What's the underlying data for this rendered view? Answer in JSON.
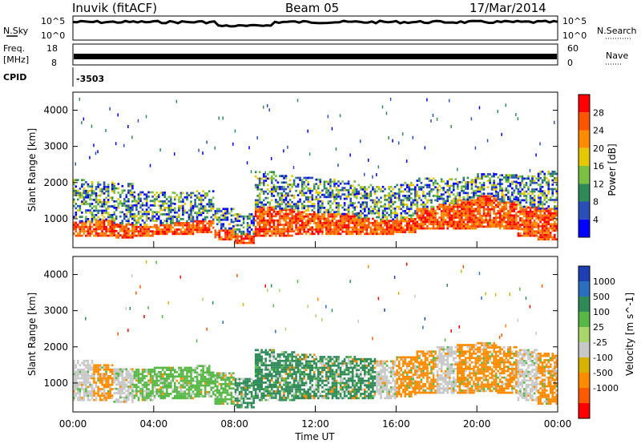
{
  "header": {
    "station": "Inuvik (fitACF)",
    "beam": "Beam 05",
    "date": "17/Mar/2014"
  },
  "status_panels": {
    "nsky_label": "N.Sky",
    "nsky_ticks": [
      "10^5",
      "10^0"
    ],
    "nsearch_label": "N.Search",
    "freq_label": "Freq.",
    "freq_unit": "[MHz]",
    "freq_ticks": [
      "18",
      "8"
    ],
    "nave_label": "Nave",
    "nave_ticks": [
      "60",
      "0"
    ],
    "cpid_label": "CPID",
    "cpid_value": "-3503"
  },
  "chart_data": [
    {
      "type": "heatmap",
      "title": "",
      "xlabel": "",
      "ylabel": "Slant Range [km]",
      "colorbar_label": "Power [dB]",
      "colorbar_ticks": [
        "4",
        "8",
        "12",
        "16",
        "20",
        "24",
        "28"
      ],
      "colorbar_colors": [
        "#0000ff",
        "#2a4fb8",
        "#2e8b57",
        "#7ac043",
        "#e6c800",
        "#ff8c00",
        "#ff5500",
        "#ff0000"
      ],
      "x_tick_labels": [
        "00:00",
        "04:00",
        "08:00",
        "12:00",
        "16:00",
        "20:00",
        "00:00"
      ],
      "xlim_hours": [
        0,
        24
      ],
      "y_ticks": [
        1000,
        2000,
        3000,
        4000
      ],
      "ylim": [
        200,
        4500
      ],
      "x_hours": [
        0,
        1,
        2,
        3,
        4,
        5,
        6,
        7,
        8,
        9,
        10,
        11,
        12,
        13,
        14,
        15,
        16,
        17,
        18,
        19,
        20,
        21,
        22,
        23
      ],
      "strong_echo_range_km": [
        [
          500,
          900
        ],
        [
          500,
          950
        ],
        [
          450,
          850
        ],
        [
          500,
          800
        ],
        [
          550,
          850
        ],
        [
          550,
          900
        ],
        [
          600,
          950
        ],
        [
          400,
          700
        ],
        [
          300,
          550
        ],
        [
          500,
          1300
        ],
        [
          500,
          1250
        ],
        [
          550,
          1200
        ],
        [
          550,
          1150
        ],
        [
          550,
          1100
        ],
        [
          550,
          1000
        ],
        [
          550,
          950
        ],
        [
          600,
          1000
        ],
        [
          700,
          1300
        ],
        [
          700,
          1400
        ],
        [
          700,
          1500
        ],
        [
          750,
          1600
        ],
        [
          700,
          1450
        ],
        [
          500,
          1300
        ],
        [
          400,
          1250
        ]
      ],
      "weak_echo_range_km": [
        [
          1000,
          2100
        ],
        [
          900,
          2000
        ],
        [
          850,
          1950
        ],
        [
          850,
          1750
        ],
        [
          850,
          1700
        ],
        [
          900,
          1700
        ],
        [
          950,
          1750
        ],
        [
          600,
          1300
        ],
        [
          550,
          1100
        ],
        [
          1200,
          2300
        ],
        [
          1200,
          2200
        ],
        [
          1150,
          2150
        ],
        [
          1100,
          2100
        ],
        [
          1100,
          2050
        ],
        [
          1000,
          1950
        ],
        [
          950,
          1900
        ],
        [
          1000,
          2000
        ],
        [
          1300,
          2100
        ],
        [
          1400,
          2100
        ],
        [
          1500,
          2150
        ],
        [
          1550,
          2250
        ],
        [
          1450,
          2200
        ],
        [
          1300,
          2200
        ],
        [
          1200,
          2300
        ]
      ]
    },
    {
      "type": "heatmap",
      "title": "",
      "xlabel": "Time UT",
      "ylabel": "Slant Range [km]",
      "colorbar_label": "Velocity [m s^-1]",
      "colorbar_ticks": [
        "1000",
        "500",
        "100",
        "25",
        "-25",
        "-100",
        "-500",
        "-1000"
      ],
      "colorbar_colors": [
        "#1e3fb4",
        "#2a6fbf",
        "#2e8b57",
        "#57b846",
        "#a9d66a",
        "#c8c8c8",
        "#d9b200",
        "#ff8c00",
        "#ff5a00",
        "#ff0000"
      ],
      "x_tick_labels": [
        "00:00",
        "04:00",
        "08:00",
        "12:00",
        "16:00",
        "20:00",
        "00:00"
      ],
      "xlim_hours": [
        0,
        24
      ],
      "y_ticks": [
        1000,
        2000,
        3000,
        4000
      ],
      "ylim": [
        200,
        4500
      ],
      "x_hours": [
        0,
        1,
        2,
        3,
        4,
        5,
        6,
        7,
        8,
        9,
        10,
        11,
        12,
        13,
        14,
        15,
        16,
        17,
        18,
        19,
        20,
        21,
        22,
        23
      ],
      "dominant_velocity": [
        "-25",
        "-100",
        "-25",
        "100",
        "100",
        "100",
        "100",
        "100",
        "500",
        "500",
        "500",
        "500",
        "500",
        "500",
        "500",
        "-25",
        "-100",
        "-100",
        "-25",
        "-100",
        "-100",
        "-100",
        "-25",
        "-100"
      ],
      "echo_range_km": [
        [
          500,
          1600
        ],
        [
          500,
          1500
        ],
        [
          450,
          1400
        ],
        [
          500,
          1400
        ],
        [
          550,
          1400
        ],
        [
          550,
          1450
        ],
        [
          600,
          1500
        ],
        [
          400,
          1300
        ],
        [
          300,
          1100
        ],
        [
          500,
          1900
        ],
        [
          500,
          1850
        ],
        [
          550,
          1800
        ],
        [
          550,
          1750
        ],
        [
          550,
          1700
        ],
        [
          550,
          1650
        ],
        [
          550,
          1600
        ],
        [
          600,
          1700
        ],
        [
          700,
          1900
        ],
        [
          700,
          2000
        ],
        [
          700,
          2050
        ],
        [
          750,
          2100
        ],
        [
          700,
          2000
        ],
        [
          500,
          1900
        ],
        [
          400,
          1800
        ]
      ]
    }
  ]
}
